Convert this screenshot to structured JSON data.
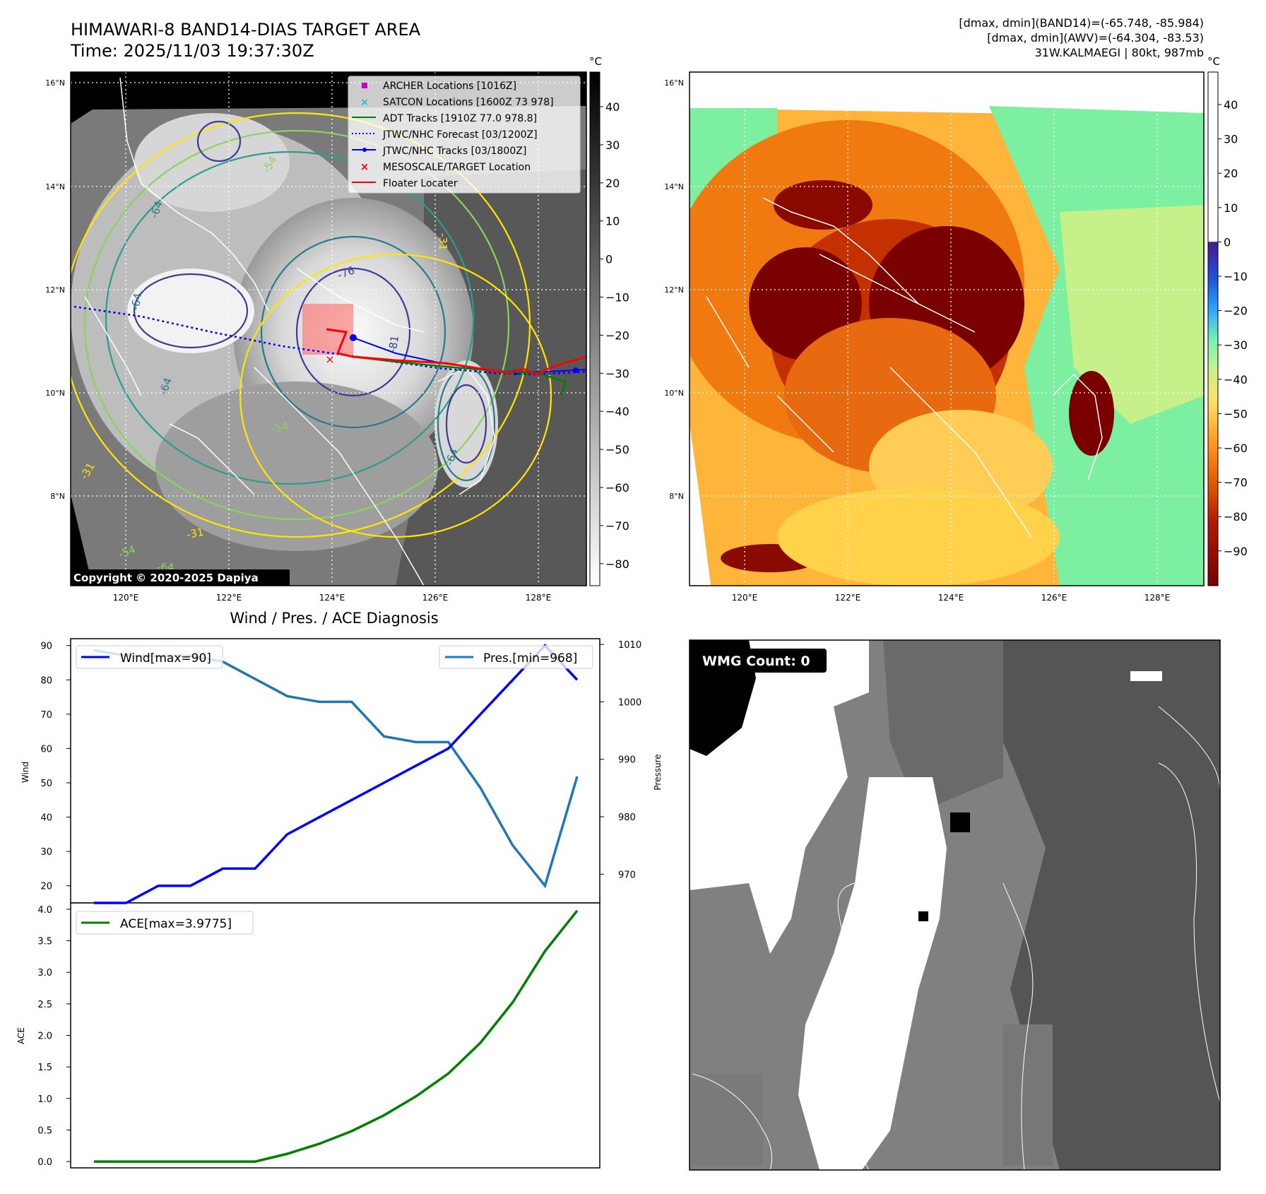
{
  "header": {
    "title_line1": "HIMAWARI-8 BAND14-DIAS TARGET AREA",
    "title_line2": "Time: 2025/11/03 19:37:30Z",
    "stats_line1": "[dmax, dmin](BAND14)=(-65.748, -85.984)",
    "stats_line2": "[dmax, dmin](AWV)=(-64.304, -83.53)",
    "stats_line3": "31W.KALMAEGI | 80kt, 987mb"
  },
  "map_panel": {
    "lat_ticks": [
      "8°N",
      "10°N",
      "12°N",
      "14°N",
      "16°N"
    ],
    "lon_ticks": [
      "120°E",
      "122°E",
      "124°E",
      "126°E",
      "128°E"
    ],
    "copyright": "Copyright © 2020-2025 Dapiya",
    "contour_labels": [
      "-64",
      "-64",
      "-54",
      "-54",
      "-64",
      "-64",
      "-76",
      "-81",
      "-31",
      "-31",
      "-31",
      "-54",
      "-64"
    ],
    "legend": [
      {
        "label": "ARCHER Locations [1016Z]",
        "color": "#cc00cc",
        "marker": "square"
      },
      {
        "label": "SATCON Locations [1600Z 73 978]",
        "color": "#17becf",
        "marker": "x"
      },
      {
        "label": "ADT Tracks [1910Z 77.0 978.8]",
        "color": "#008000",
        "marker": "line"
      },
      {
        "label": "JTWC/NHC Forecast [03/1200Z]",
        "color": "#0000ff",
        "marker": "dotted"
      },
      {
        "label": "JTWC/NHC Tracks [03/1800Z]",
        "color": "#0000ff",
        "marker": "line-dot"
      },
      {
        "label": "MESOSCALE/TARGET Location",
        "color": "#ff0000",
        "marker": "x"
      },
      {
        "label": "Floater Locater",
        "color": "#ff0000",
        "marker": "line"
      }
    ]
  },
  "colorbar_gray": {
    "unit": "°C",
    "ticks": [
      "40",
      "30",
      "20",
      "10",
      "0",
      "−10",
      "−20",
      "−30",
      "−40",
      "−50",
      "−60",
      "−70",
      "−80"
    ]
  },
  "colorbar_color": {
    "unit": "°C",
    "ticks": [
      "40",
      "30",
      "20",
      "10",
      "0",
      "−10",
      "−20",
      "−30",
      "−40",
      "−50",
      "−60",
      "−70",
      "−80",
      "−90"
    ]
  },
  "wmg_panel": {
    "label": "WMG Count: 0"
  },
  "chart_data": [
    {
      "type": "line",
      "title": "Wind / Pres. / ACE Diagnosis",
      "ylabel": "Wind",
      "y2label": "Pressure",
      "x": [
        0,
        1,
        2,
        3,
        4,
        5,
        6,
        7,
        8,
        9,
        10,
        11,
        12,
        13,
        14,
        15
      ],
      "ylim": [
        15,
        92
      ],
      "y2lim": [
        965,
        1011
      ],
      "yticks": [
        "20",
        "30",
        "40",
        "50",
        "60",
        "70",
        "80",
        "90"
      ],
      "y2ticks": [
        "970",
        "980",
        "990",
        "1000",
        "1010"
      ],
      "series": [
        {
          "name": "Wind[max=90]",
          "axis": "left",
          "color": "#0000ff",
          "values": [
            15,
            15,
            20,
            20,
            25,
            25,
            35,
            40,
            45,
            50,
            55,
            60,
            70,
            80,
            90,
            80
          ]
        },
        {
          "name": "Pres.[min=968]",
          "axis": "right",
          "color": "#1f77b4",
          "values": [
            1009,
            1008,
            1008,
            1008,
            1007,
            1004,
            1001,
            1000,
            1000,
            994,
            993,
            993,
            985,
            975,
            968,
            987
          ]
        }
      ],
      "legend": [
        "top-left",
        "top-right"
      ]
    },
    {
      "type": "line",
      "ylabel": "ACE",
      "x": [
        0,
        1,
        2,
        3,
        4,
        5,
        6,
        7,
        8,
        9,
        10,
        11,
        12,
        13,
        14,
        15
      ],
      "ylim": [
        -0.1,
        4.1
      ],
      "yticks": [
        "0.0",
        "0.5",
        "1.0",
        "1.5",
        "2.0",
        "2.5",
        "3.0",
        "3.5",
        "4.0"
      ],
      "series": [
        {
          "name": "ACE[max=3.9775]",
          "color": "#008000",
          "values": [
            0,
            0,
            0,
            0,
            0,
            0,
            0.1225,
            0.2825,
            0.4825,
            0.7325,
            1.035,
            1.395,
            1.885,
            2.525,
            3.335,
            3.9775
          ]
        }
      ],
      "legend": "top-left"
    }
  ]
}
